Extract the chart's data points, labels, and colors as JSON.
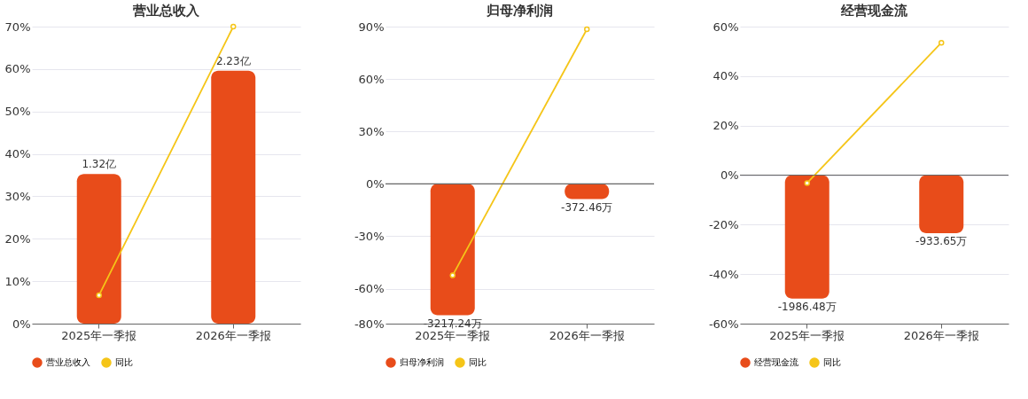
{
  "chart_data": [
    {
      "type": "bar",
      "title": "营业总收入",
      "categories": [
        "2025年一季报",
        "2026年一季报"
      ],
      "series": [
        {
          "name": "营业总收入",
          "axis": "y2",
          "color": "#e84c1a",
          "values": [
            1.32,
            2.23
          ],
          "value_labels": [
            "1.32亿",
            "2.23亿"
          ]
        },
        {
          "name": "同比",
          "type": "line",
          "color": "#f5c518",
          "values": [
            6.7,
            70
          ],
          "marker": "circle"
        }
      ],
      "ylim": [
        0,
        70
      ],
      "yticks": [
        {
          "value": 0,
          "label": "0%"
        },
        {
          "value": 10,
          "label": "10%"
        },
        {
          "value": 20,
          "label": "20%"
        },
        {
          "value": 30,
          "label": "30%"
        },
        {
          "value": 40,
          "label": "40%"
        },
        {
          "value": 50,
          "label": "50%"
        },
        {
          "value": 60,
          "label": "60%"
        },
        {
          "value": 70,
          "label": "70%"
        }
      ],
      "y2lim": [
        0,
        2.62
      ],
      "grid": "y",
      "legend": "bottom"
    },
    {
      "type": "bar",
      "title": "归母净利润",
      "categories": [
        "2025年一季报",
        "2026年一季报"
      ],
      "series": [
        {
          "name": "归母净利润",
          "axis": "y2",
          "color": "#e84c1a",
          "values": [
            -3217.24,
            -372.46
          ],
          "value_labels": [
            "-3217.24万",
            "-372.46万"
          ]
        },
        {
          "name": "同比",
          "type": "line",
          "color": "#f5c518",
          "values": [
            -52.4,
            88.5
          ],
          "marker": "circle"
        }
      ],
      "ylim": [
        -80,
        90
      ],
      "yticks": [
        {
          "value": -80,
          "label": "-80%"
        },
        {
          "value": -60,
          "label": "-60%"
        },
        {
          "value": -30,
          "label": "-30%"
        },
        {
          "value": 0,
          "label": "0%"
        },
        {
          "value": 30,
          "label": "30%"
        },
        {
          "value": 60,
          "label": "60%"
        },
        {
          "value": 90,
          "label": "90%"
        }
      ],
      "y2lim": [
        -3423,
        3851
      ],
      "grid": "y",
      "legend": "bottom",
      "ref_lines": [
        {
          "axis": "y",
          "value": 0,
          "color": "#666666"
        }
      ]
    },
    {
      "type": "bar",
      "title": "经营现金流",
      "categories": [
        "2025年一季报",
        "2026年一季报"
      ],
      "series": [
        {
          "name": "经营现金流",
          "axis": "y2",
          "color": "#e84c1a",
          "values": [
            -1986.48,
            -933.65
          ],
          "value_labels": [
            "-1986.48万",
            "-933.65万"
          ]
        },
        {
          "name": "同比",
          "type": "line",
          "color": "#f5c518",
          "values": [
            -3.2,
            53.5
          ],
          "marker": "circle"
        }
      ],
      "ylim": [
        -60,
        60
      ],
      "yticks": [
        {
          "value": -60,
          "label": "-60%"
        },
        {
          "value": -40,
          "label": "-40%"
        },
        {
          "value": -20,
          "label": "-20%"
        },
        {
          "value": 0,
          "label": "0%"
        },
        {
          "value": 20,
          "label": "20%"
        },
        {
          "value": 40,
          "label": "40%"
        },
        {
          "value": 60,
          "label": "60%"
        }
      ],
      "y2lim": [
        -2388,
        2388
      ],
      "grid": "y",
      "legend": "bottom",
      "ref_lines": [
        {
          "axis": "y",
          "value": 0,
          "color": "#666666"
        }
      ]
    }
  ]
}
